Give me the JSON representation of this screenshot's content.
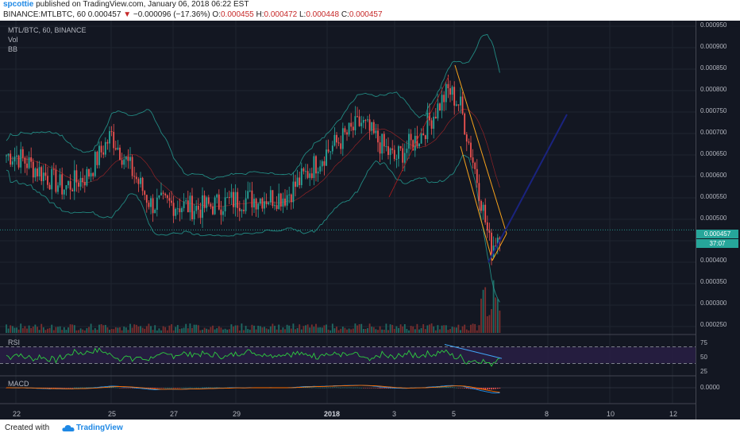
{
  "header": {
    "author": "spcottie",
    "published_text": "published on TradingView.com, January 06, 2018 06:22 EST"
  },
  "symbol_bar": {
    "symbol": "BINANCE:MTLBTC, 60",
    "price": "0.000457",
    "change": "−0.000096 (−17.36%)",
    "open_label": "O:",
    "open": "0.000455",
    "high_label": "H:",
    "high": "0.000472",
    "low_label": "L:",
    "low": "0.000448",
    "close_label": "C:",
    "close": "0.000457"
  },
  "legend": {
    "title": "MTL/BTC, 60, BINANCE",
    "vol": "Vol",
    "bb": "BB"
  },
  "panes": {
    "rsi": "RSI",
    "macd": "MACD"
  },
  "price_axis": {
    "labels": [
      "0.000950",
      "0.000900",
      "0.000850",
      "0.000800",
      "0.000750",
      "0.000700",
      "0.000650",
      "0.000600",
      "0.000550",
      "0.000500",
      "0.000400",
      "0.000350",
      "0.000300",
      "0.000250"
    ],
    "current_price": "0.000457",
    "countdown": "37:07"
  },
  "rsi_axis": [
    "75",
    "50",
    "25"
  ],
  "macd_axis": [
    "0.0000"
  ],
  "time_axis": [
    "22",
    "25",
    "27",
    "29",
    "2018",
    "3",
    "5",
    "8",
    "10",
    "12"
  ],
  "footer": {
    "created": "Created with",
    "brand": "TradingView"
  },
  "colors": {
    "background": "#131722",
    "up": "#26a69a",
    "down": "#ef5350",
    "bollinger": "#26a69a",
    "trend_orange": "#f7a21b",
    "trend_blue": "#1a237e",
    "rsi_line": "#2ecc40",
    "macd_line": "#2196f3",
    "signal_line": "#ff6d00"
  },
  "chart_data": {
    "type": "candlestick",
    "symbol": "MTL/BTC",
    "interval": "60",
    "exchange": "BINANCE",
    "ylim": [
      0.00022,
      0.00096
    ],
    "x_ticks": [
      "22",
      "25",
      "27",
      "29",
      "2018",
      "3",
      "5",
      "8",
      "10",
      "12"
    ],
    "close_path": [
      {
        "x": "22",
        "y": 0.00064
      },
      {
        "x": "23",
        "y": 0.00056
      },
      {
        "x": "24",
        "y": 0.00059
      },
      {
        "x": "25",
        "y": 0.00069
      },
      {
        "x": "26",
        "y": 0.00052
      },
      {
        "x": "27",
        "y": 0.00052
      },
      {
        "x": "28",
        "y": 0.00051
      },
      {
        "x": "29",
        "y": 0.00053
      },
      {
        "x": "31",
        "y": 0.00054
      },
      {
        "x": "2018",
        "y": 0.00065
      },
      {
        "x": "2",
        "y": 0.00072
      },
      {
        "x": "3",
        "y": 0.00063
      },
      {
        "x": "4",
        "y": 0.00069
      },
      {
        "x": "4.5",
        "y": 0.0008
      },
      {
        "x": "5",
        "y": 0.00076
      },
      {
        "x": "5.5",
        "y": 0.00059
      },
      {
        "x": "6",
        "y": 0.00041
      },
      {
        "x": "6.3",
        "y": 0.000457
      }
    ],
    "current": 0.000457
  }
}
